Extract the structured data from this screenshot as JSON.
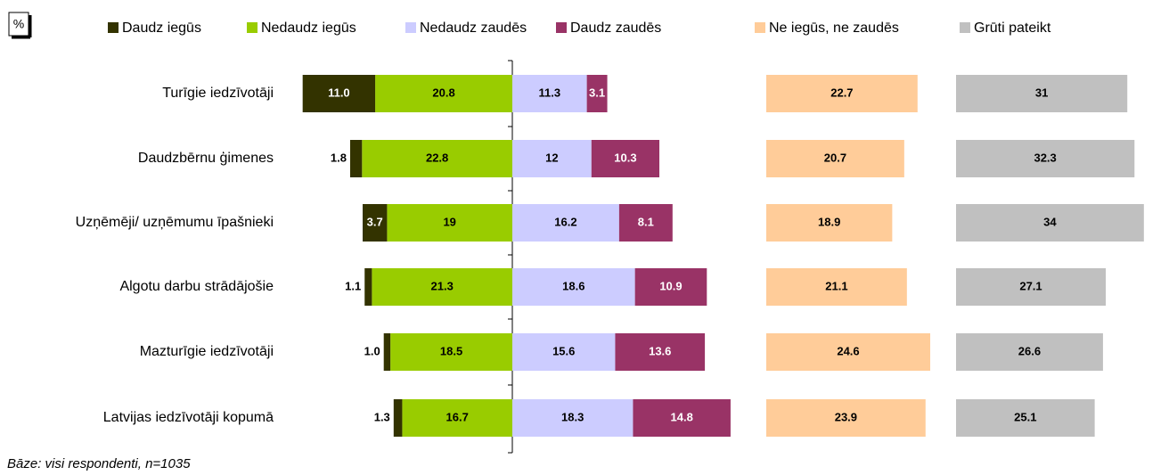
{
  "chart_data": {
    "type": "bar",
    "unit": "%",
    "footnote": "Bāze: visi respondenti, n=1035",
    "categories": [
      "Turīgie iedzīvotāji",
      "Daudzbērnu ģimenes",
      "Uzņēmēji/ uzņēmumu īpašnieki",
      "Algotu darbu strādājošie",
      "Mazturīgie iedzīvotāji",
      "Latvijas iedzīvotāji kopumā"
    ],
    "series": [
      {
        "name": "Daudz iegūs",
        "color": "#333300",
        "values": [
          11.0,
          1.8,
          3.7,
          1.1,
          1.0,
          1.3
        ],
        "value_labels": [
          "11.0",
          "1.8",
          "3.7",
          "1.1",
          "1.0",
          "1.3"
        ]
      },
      {
        "name": "Nedaudz iegūs",
        "color": "#99cc00",
        "values": [
          20.8,
          22.8,
          19.0,
          21.3,
          18.5,
          16.7
        ]
      },
      {
        "name": "Nedaudz zaudēs",
        "color": "#ccccff",
        "values": [
          11.3,
          12.0,
          16.2,
          18.6,
          15.6,
          18.3
        ]
      },
      {
        "name": "Daudz zaudēs",
        "color": "#993366",
        "values": [
          3.1,
          10.3,
          8.1,
          10.9,
          13.6,
          14.8
        ]
      },
      {
        "name": "Ne iegūs, ne zaudēs",
        "color": "#ffcc99",
        "values": [
          22.7,
          20.7,
          18.9,
          21.1,
          24.6,
          23.9
        ]
      },
      {
        "name": "Grūti pateikt",
        "color": "#c0c0c0",
        "values": [
          31.0,
          32.3,
          34.0,
          27.1,
          26.6,
          25.1
        ]
      }
    ]
  }
}
